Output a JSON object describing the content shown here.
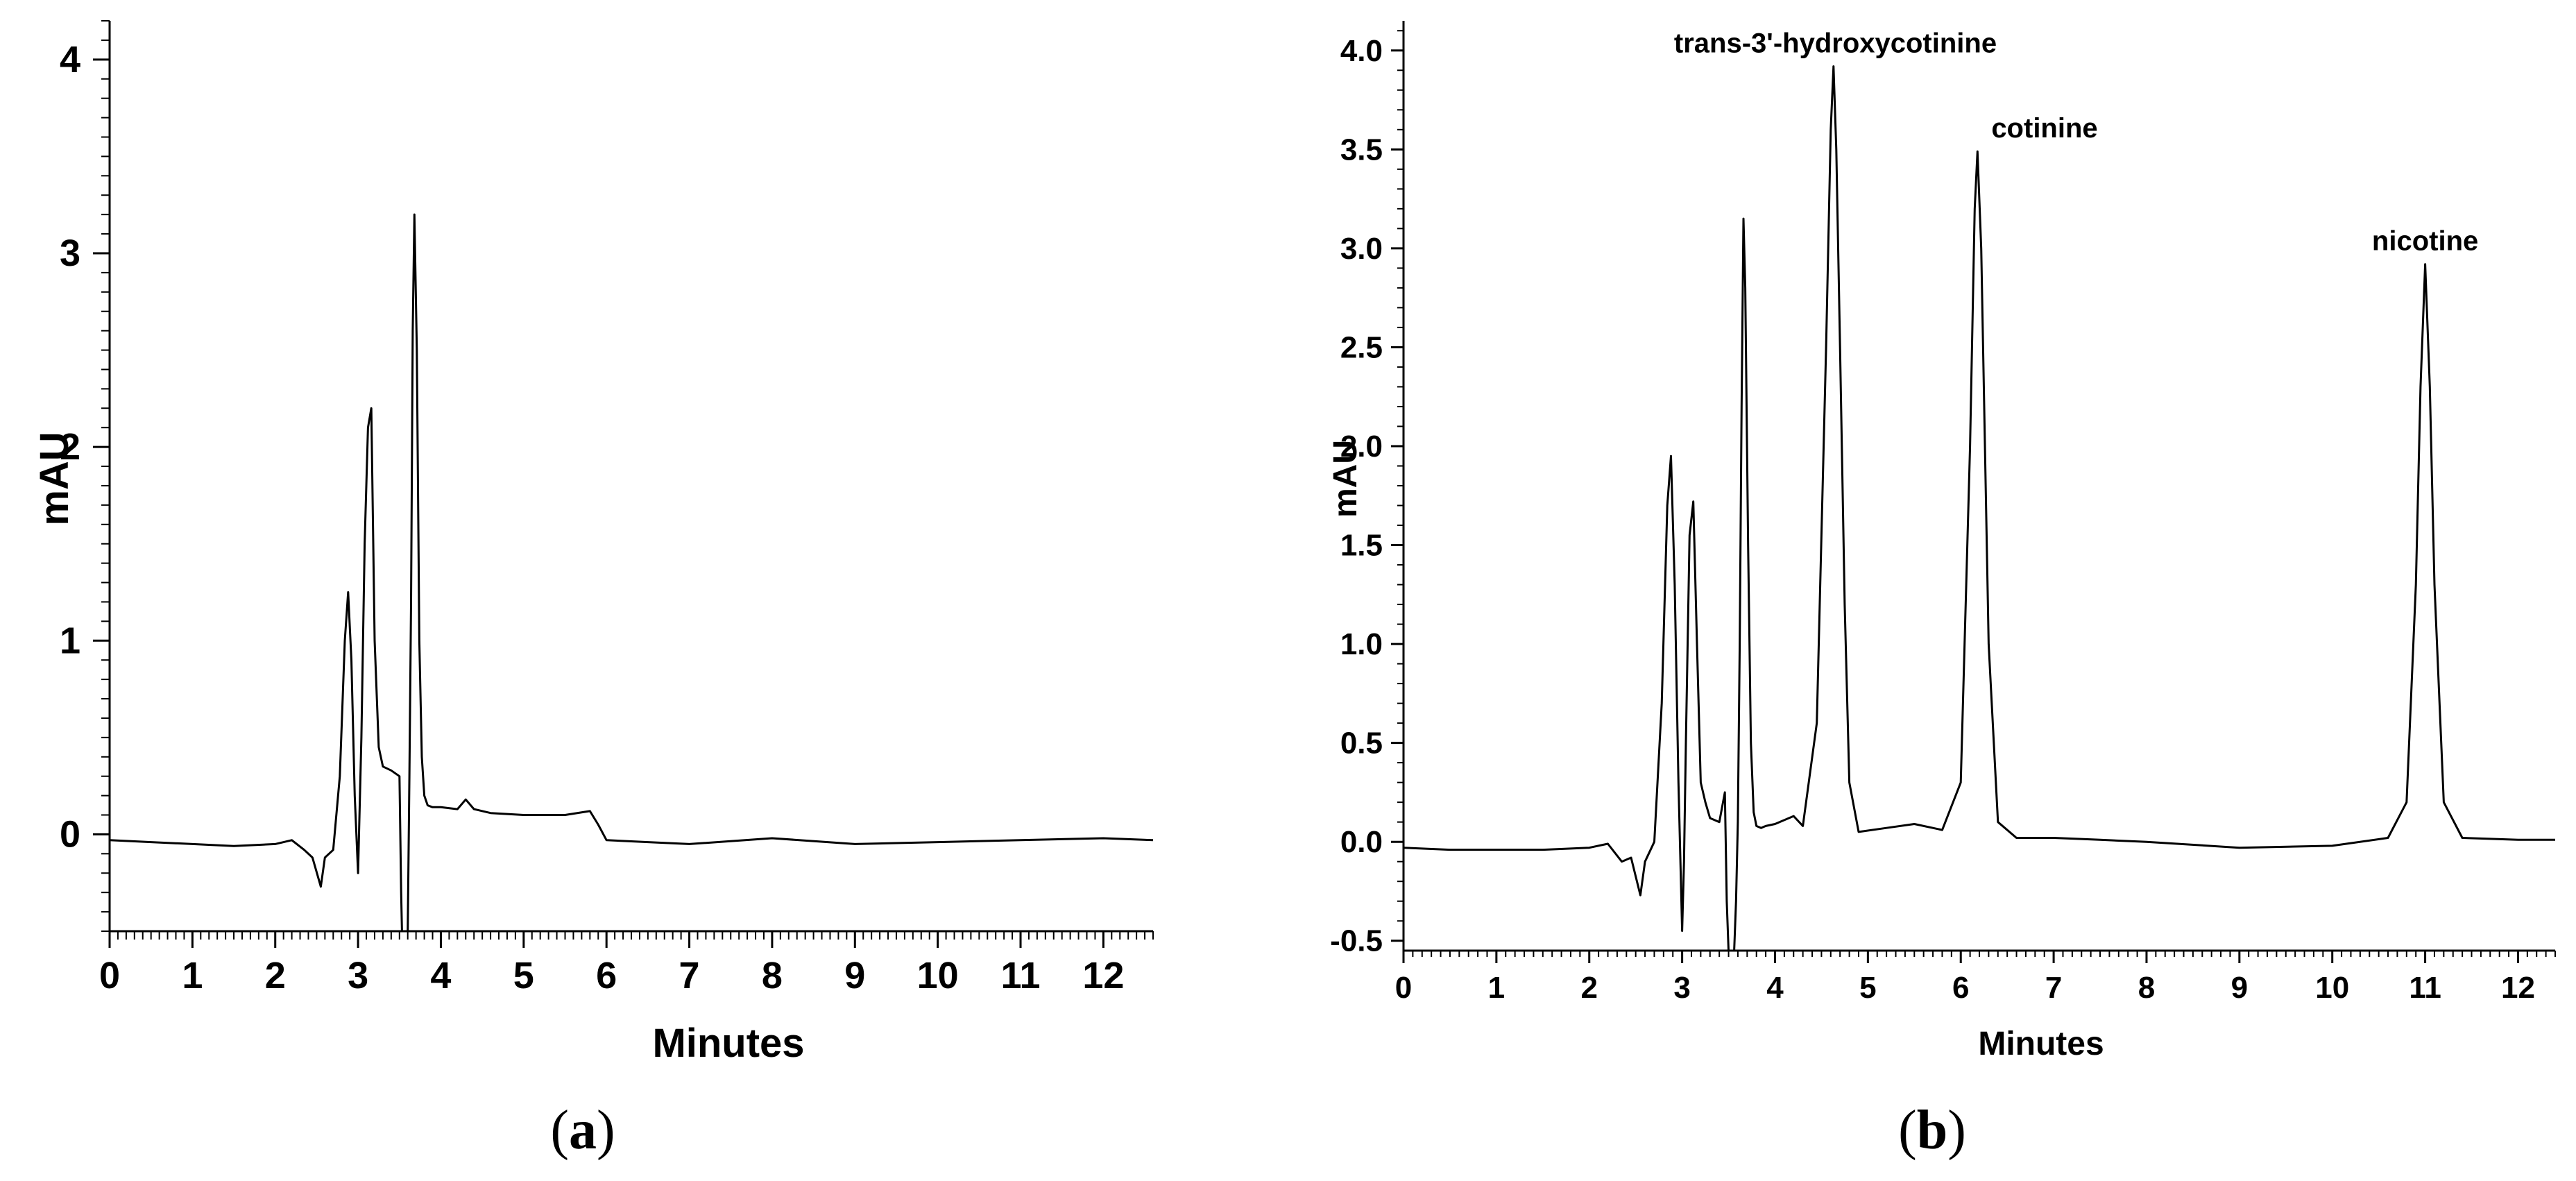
{
  "chart_data": [
    {
      "type": "line",
      "panel_label": "(a)",
      "panel_letter": "a",
      "xlabel": "Minutes",
      "ylabel": "mAU",
      "xlim": [
        0,
        12.6
      ],
      "ylim": [
        -0.5,
        4.2
      ],
      "x_ticks": [
        0,
        1,
        2,
        3,
        4,
        5,
        6,
        7,
        8,
        9,
        10,
        11,
        12
      ],
      "y_ticks": [
        0,
        1,
        2,
        3,
        4
      ],
      "y_tick_labels": [
        "0",
        "1",
        "2",
        "3",
        "4"
      ],
      "grid": false,
      "series": [
        {
          "x": [
            0,
            0.5,
            1.0,
            1.5,
            2.0,
            2.2,
            2.35,
            2.45,
            2.55,
            2.6,
            2.7,
            2.78,
            2.84,
            2.88,
            2.92,
            2.96,
            3.0,
            3.04,
            3.08,
            3.12,
            3.16,
            3.2,
            3.25,
            3.3,
            3.4,
            3.5,
            3.52,
            3.53,
            3.54,
            3.56,
            3.58,
            3.6,
            3.62,
            3.64,
            3.66,
            3.68,
            3.71,
            3.74,
            3.77,
            3.8,
            3.84,
            3.9,
            4.0,
            4.2,
            4.3,
            4.4,
            4.6,
            5.0,
            5.5,
            5.8,
            5.9,
            6.0,
            6.5,
            7.0,
            8.0,
            9.0,
            10.0,
            11.0,
            12.0,
            12.6
          ],
          "y": [
            -0.03,
            -0.04,
            -0.05,
            -0.06,
            -0.05,
            -0.03,
            -0.08,
            -0.12,
            -0.27,
            -0.12,
            -0.08,
            0.3,
            1.0,
            1.25,
            0.9,
            0.2,
            -0.2,
            0.5,
            1.5,
            2.1,
            2.2,
            1.0,
            0.45,
            0.35,
            0.33,
            0.3,
            -0.3,
            -0.5,
            -0.5,
            -0.5,
            -0.5,
            -0.5,
            0.3,
            1.2,
            2.6,
            3.2,
            2.5,
            1.0,
            0.4,
            0.2,
            0.15,
            0.14,
            0.14,
            0.13,
            0.18,
            0.13,
            0.11,
            0.1,
            0.1,
            0.12,
            0.05,
            -0.03,
            -0.04,
            -0.05,
            -0.02,
            -0.05,
            -0.04,
            -0.03,
            -0.02,
            -0.03
          ]
        }
      ],
      "line_color": "#000000"
    },
    {
      "type": "line",
      "panel_label": "(b)",
      "panel_letter": "b",
      "xlabel": "Minutes",
      "ylabel": "mAU",
      "xlim": [
        0,
        12.4
      ],
      "ylim": [
        -0.55,
        4.15
      ],
      "x_ticks": [
        0,
        1,
        2,
        3,
        4,
        5,
        6,
        7,
        8,
        9,
        10,
        11,
        12
      ],
      "y_ticks": [
        -0.5,
        0.0,
        0.5,
        1.0,
        1.5,
        2.0,
        2.5,
        3.0,
        3.5,
        4.0
      ],
      "y_tick_labels": [
        "-0.5",
        "0.0",
        "0.5",
        "1.0",
        "1.5",
        "2.0",
        "2.5",
        "3.0",
        "3.5",
        "4.0"
      ],
      "grid": false,
      "annotations": [
        {
          "text": "trans-3'-hydroxycotinine",
          "x": 4.65,
          "y": 3.92
        },
        {
          "text": "cotinine",
          "x": 6.18,
          "y": 3.49
        },
        {
          "text": "nicotine",
          "x": 11.0,
          "y": 2.92
        }
      ],
      "series": [
        {
          "x": [
            0,
            0.5,
            1.0,
            1.5,
            2.0,
            2.2,
            2.35,
            2.45,
            2.55,
            2.6,
            2.7,
            2.78,
            2.84,
            2.88,
            2.92,
            2.96,
            3.0,
            3.02,
            3.04,
            3.08,
            3.12,
            3.16,
            3.2,
            3.25,
            3.3,
            3.4,
            3.46,
            3.48,
            3.5,
            3.52,
            3.54,
            3.56,
            3.58,
            3.6,
            3.62,
            3.64,
            3.66,
            3.68,
            3.71,
            3.74,
            3.77,
            3.8,
            3.85,
            3.9,
            4.0,
            4.2,
            4.3,
            4.45,
            4.55,
            4.6,
            4.63,
            4.66,
            4.7,
            4.75,
            4.8,
            4.9,
            5.2,
            5.5,
            5.8,
            6.0,
            6.1,
            6.15,
            6.18,
            6.22,
            6.3,
            6.4,
            6.6,
            7.0,
            7.5,
            8.0,
            9.0,
            10.0,
            10.6,
            10.8,
            10.9,
            10.95,
            11.0,
            11.05,
            11.1,
            11.2,
            11.4,
            12.0,
            12.4
          ],
          "y": [
            -0.03,
            -0.04,
            -0.04,
            -0.04,
            -0.03,
            -0.01,
            -0.1,
            -0.08,
            -0.27,
            -0.1,
            0.0,
            0.7,
            1.7,
            1.95,
            1.3,
            0.3,
            -0.45,
            -0.1,
            0.5,
            1.55,
            1.72,
            1.0,
            0.3,
            0.2,
            0.12,
            0.1,
            0.25,
            -0.3,
            -0.55,
            -0.55,
            -0.55,
            -0.55,
            -0.3,
            0.1,
            1.0,
            2.2,
            3.15,
            2.8,
            1.5,
            0.5,
            0.15,
            0.08,
            0.07,
            0.08,
            0.09,
            0.13,
            0.08,
            0.6,
            2.5,
            3.6,
            3.92,
            3.5,
            2.5,
            1.2,
            0.3,
            0.05,
            0.07,
            0.09,
            0.06,
            0.3,
            2.0,
            3.2,
            3.49,
            3.0,
            1.0,
            0.1,
            0.02,
            0.02,
            0.01,
            0.0,
            -0.03,
            -0.02,
            0.02,
            0.2,
            1.3,
            2.3,
            2.92,
            2.3,
            1.3,
            0.2,
            0.02,
            0.01,
            0.01
          ]
        }
      ],
      "line_color": "#000000"
    }
  ]
}
